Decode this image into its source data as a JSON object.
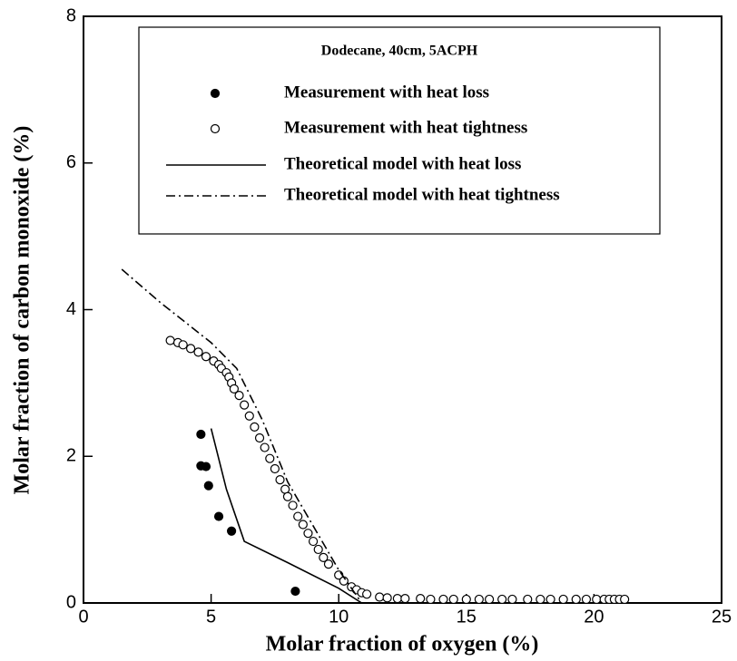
{
  "chart_data": {
    "type": "scatter-line",
    "x_label": "Molar fraction of oxygen (%)",
    "y_label": "Molar fraction of carbon monoxide (%)",
    "xlim": [
      0,
      25
    ],
    "xticks": [
      0,
      5,
      10,
      15,
      20,
      25
    ],
    "ylim": [
      0,
      8
    ],
    "yticks": [
      0,
      2,
      4,
      6,
      8
    ],
    "legend_title": "Dodecane, 40cm, 5ACPH",
    "legend": "upper-center",
    "series": [
      {
        "name": "Measurement with heat loss",
        "color": "#000000",
        "style": "filled-marker",
        "x": [
          4.6,
          4.6,
          4.8,
          4.9,
          5.3,
          5.8,
          8.3
        ],
        "values": [
          2.3,
          1.87,
          1.86,
          1.6,
          1.18,
          0.98,
          0.16
        ]
      },
      {
        "name": "Measurement with heat tightness",
        "color": "#000000",
        "style": "open-marker",
        "x": [
          3.4,
          3.7,
          3.9,
          4.2,
          4.5,
          4.8,
          5.1,
          5.3,
          5.4,
          5.6,
          5.7,
          5.8,
          5.9,
          6.1,
          6.3,
          6.5,
          6.7,
          6.9,
          7.1,
          7.3,
          7.5,
          7.7,
          7.9,
          8.0,
          8.2,
          8.4,
          8.6,
          8.8,
          9.0,
          9.2,
          9.4,
          9.6,
          10.0,
          10.2,
          10.5,
          10.7,
          10.9,
          11.1,
          11.6,
          11.9,
          12.3,
          12.6,
          13.2,
          13.6,
          14.1,
          14.5,
          15.0,
          15.5,
          15.9,
          16.4,
          16.8,
          17.4,
          17.9,
          18.3,
          18.8,
          19.3,
          19.7,
          20.1,
          20.4,
          20.6,
          20.8,
          21.0,
          21.2
        ],
        "values": [
          3.58,
          3.55,
          3.52,
          3.47,
          3.42,
          3.36,
          3.3,
          3.25,
          3.2,
          3.14,
          3.08,
          3.0,
          2.92,
          2.83,
          2.7,
          2.55,
          2.4,
          2.25,
          2.12,
          1.97,
          1.83,
          1.68,
          1.55,
          1.45,
          1.33,
          1.18,
          1.07,
          0.95,
          0.84,
          0.73,
          0.62,
          0.53,
          0.38,
          0.3,
          0.22,
          0.18,
          0.14,
          0.12,
          0.08,
          0.07,
          0.06,
          0.06,
          0.06,
          0.05,
          0.05,
          0.05,
          0.05,
          0.05,
          0.05,
          0.05,
          0.05,
          0.05,
          0.05,
          0.05,
          0.05,
          0.05,
          0.05,
          0.05,
          0.05,
          0.05,
          0.05,
          0.05,
          0.05
        ]
      },
      {
        "name": "Theoretical model with heat loss",
        "color": "#000000",
        "style": "solid-line",
        "x": [
          5.0,
          5.6,
          6.3,
          8.0,
          10.0,
          10.9
        ],
        "values": [
          2.38,
          1.55,
          0.84,
          0.55,
          0.2,
          0.0
        ]
      },
      {
        "name": "Theoretical model with heat tightness",
        "color": "#000000",
        "style": "dashdot-line",
        "x": [
          1.5,
          3.0,
          5.0,
          6.0,
          7.0,
          8.0,
          9.0,
          10.0,
          10.8
        ],
        "values": [
          4.55,
          4.1,
          3.55,
          3.2,
          2.5,
          1.65,
          1.05,
          0.45,
          0.05
        ]
      }
    ]
  }
}
